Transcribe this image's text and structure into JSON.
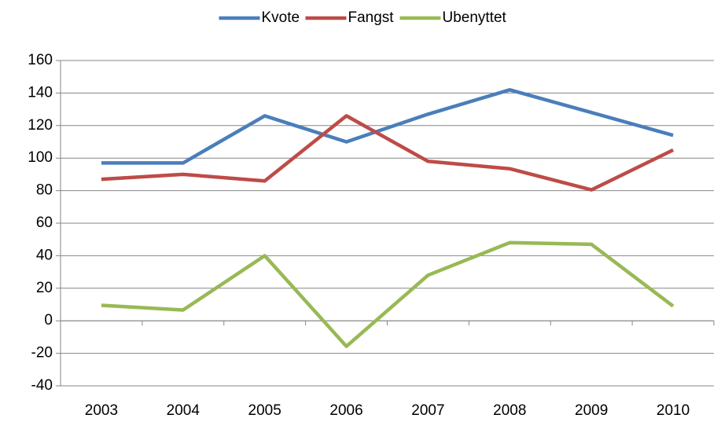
{
  "chart_data": {
    "type": "line",
    "categories": [
      "2003",
      "2004",
      "2005",
      "2006",
      "2007",
      "2008",
      "2009",
      "2010"
    ],
    "series": [
      {
        "name": "Kvote",
        "color": "#4a7ebb",
        "values": [
          97,
          97,
          126,
          110,
          127,
          142,
          128,
          114
        ]
      },
      {
        "name": "Fangst",
        "color": "#be4b48",
        "values": [
          87,
          90,
          86,
          126,
          98,
          93.5,
          80.5,
          105
        ]
      },
      {
        "name": "Ubenyttet",
        "color": "#98b954",
        "values": [
          9.5,
          6.6,
          40,
          -15.7,
          28,
          48,
          47,
          9
        ]
      }
    ],
    "ylim": [
      -40,
      160
    ],
    "yticks": [
      -40,
      -20,
      0,
      20,
      40,
      60,
      80,
      100,
      120,
      140,
      160
    ],
    "grid": true,
    "legend": "top"
  }
}
